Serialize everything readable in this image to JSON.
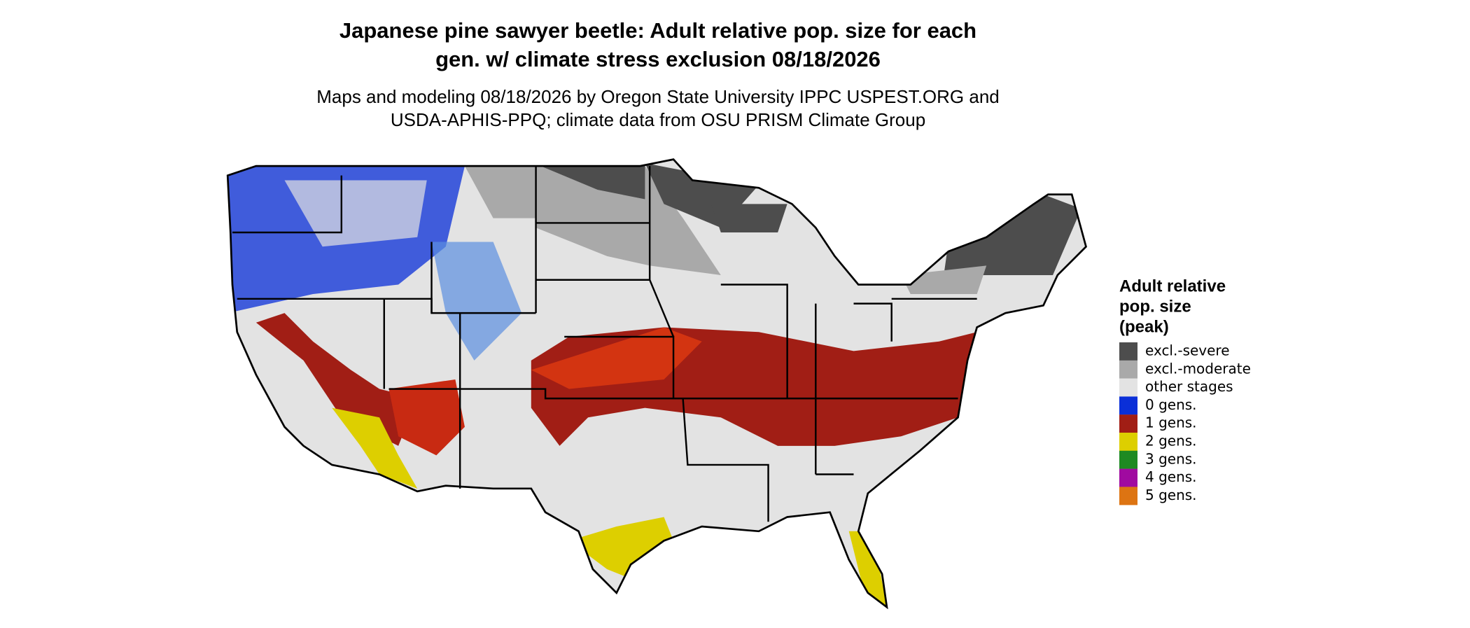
{
  "header": {
    "title": [
      "Japanese pine sawyer beetle: Adult relative pop. size for each",
      "gen. w/ climate stress exclusion 08/18/2026"
    ],
    "subtitle": [
      "Maps and modeling 08/18/2026 by Oregon State University IPPC USPEST.ORG and",
      "USDA-APHIS-PPQ; climate data from OSU PRISM Climate Group"
    ]
  },
  "legend": {
    "title": [
      "Adult relative",
      "pop. size",
      "(peak)"
    ],
    "items": [
      {
        "label": "excl.-severe",
        "color": "#4d4d4d"
      },
      {
        "label": "excl.-moderate",
        "color": "#a9a9a9"
      },
      {
        "label": "other stages",
        "color": "#e3e3e3"
      },
      {
        "label": "0 gens.",
        "color": "#0a2fd8"
      },
      {
        "label": "1 gens.",
        "color": "#a11e15"
      },
      {
        "label": "2 gens.",
        "color": "#ddcf00"
      },
      {
        "label": "3 gens.",
        "color": "#1e8a22"
      },
      {
        "label": "4 gens.",
        "color": "#a00aa0"
      },
      {
        "label": "5 gens.",
        "color": "#dd7412"
      }
    ]
  }
}
